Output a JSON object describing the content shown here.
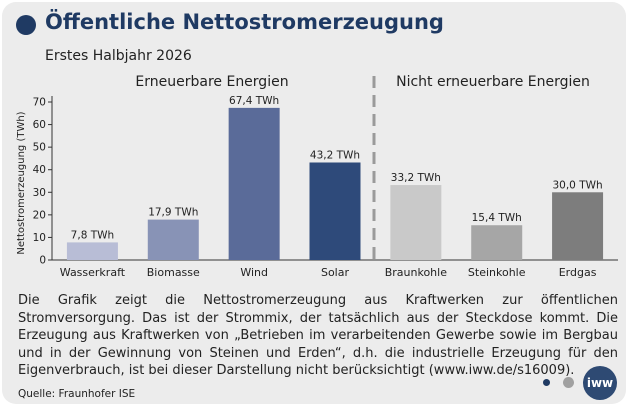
{
  "header": {
    "title": "Öffentliche Nettostromerzeugung",
    "subtitle": "Erstes Halbjahr 2026"
  },
  "chart_data": {
    "type": "bar",
    "categories": [
      "Wasserkraft",
      "Biomasse",
      "Wind",
      "Solar",
      "Braunkohle",
      "Steinkohle",
      "Erdgas"
    ],
    "values": [
      7.8,
      17.9,
      67.4,
      43.2,
      33.2,
      15.4,
      30.0
    ],
    "value_labels": [
      "7,8 TWh",
      "17,9 TWh",
      "67,4 TWh",
      "43,2 TWh",
      "33,2 TWh",
      "15,4 TWh",
      "30,0 TWh"
    ],
    "colors": [
      "#b8bdd6",
      "#8893b6",
      "#5a6b99",
      "#2e4a7a",
      "#c9c9c9",
      "#a6a6a6",
      "#7d7d7d"
    ],
    "ylabel": "Nettostromerzeugung (TWh)",
    "ylim": [
      0,
      70
    ],
    "yticks": [
      0,
      10,
      20,
      30,
      40,
      50,
      60,
      70
    ],
    "grid": false,
    "groups": [
      {
        "label": "Erneuerbare Energien",
        "categories": [
          "Wasserkraft",
          "Biomasse",
          "Wind",
          "Solar"
        ]
      },
      {
        "label": "Nicht erneuerbare Energien",
        "categories": [
          "Braunkohle",
          "Steinkohle",
          "Erdgas"
        ]
      }
    ],
    "divider": "dashed line between Solar and Braunkohle"
  },
  "description": "Die Grafik zeigt die Nettostromerzeugung aus Kraftwerken zur öffentlichen Stromversorgung. Das ist der Strommix, der tatsächlich aus der Steckdose kommt. Die Erzeugung aus Kraftwerken von „Betrieben im verarbeitenden Gewerbe sowie im Bergbau und in der Gewinnung von Steinen und Erden“, d.h. die industrielle Erzeugung für den Eigenverbrauch, ist bei dieser Darstellung nicht berücksichtigt (www.iww.de/s16009).",
  "source": "Quelle: Fraunhofer ISE",
  "pagination": {
    "dot_colors": [
      "#1f3a63",
      "#a0a0a0"
    ]
  },
  "logo": {
    "text": "iww"
  }
}
